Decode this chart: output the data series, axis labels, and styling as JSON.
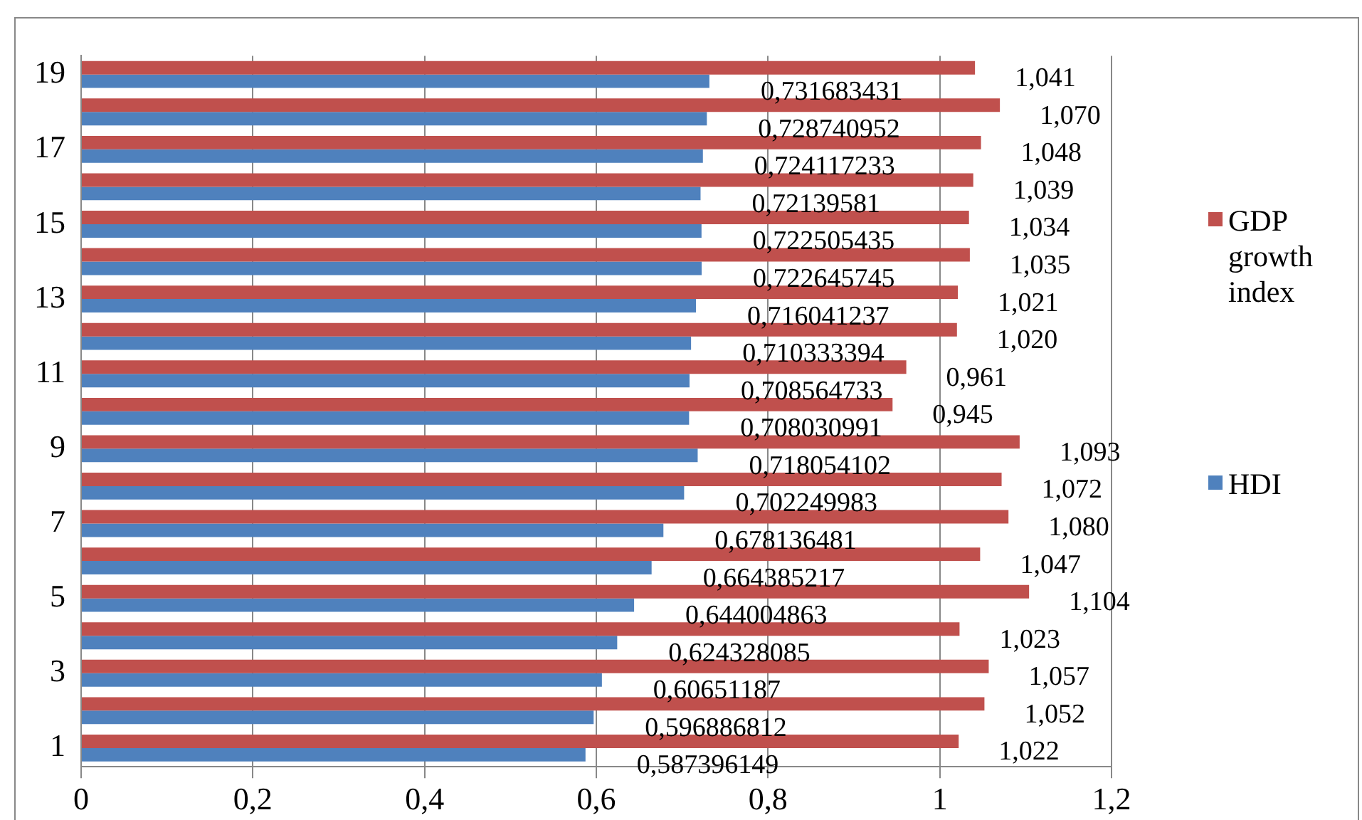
{
  "chart_data": {
    "type": "bar",
    "orientation": "horizontal",
    "categories": [
      "19",
      null,
      "17",
      null,
      "15",
      null,
      "13",
      null,
      "11",
      null,
      "9",
      null,
      "7",
      null,
      "5",
      null,
      "3",
      null,
      "1"
    ],
    "series": [
      {
        "name": "GDP growth index",
        "color": "#c0504d",
        "values": [
          1.041,
          1.07,
          1.048,
          1.039,
          1.034,
          1.035,
          1.021,
          1.02,
          0.961,
          0.945,
          1.093,
          1.072,
          1.08,
          1.047,
          1.104,
          1.023,
          1.057,
          1.052,
          1.022
        ],
        "value_labels": [
          "1,041",
          "1,070",
          "1,048",
          "1,039",
          "1,034",
          "1,035",
          "1,021",
          "1,020",
          "0,961",
          "0,945",
          "1,093",
          "1,072",
          "1,080",
          "1,047",
          "1,104",
          "1,023",
          "1,057",
          "1,052",
          "1,022"
        ]
      },
      {
        "name": "HDI",
        "color": "#4f81bd",
        "values": [
          0.731683431,
          0.728740952,
          0.724117233,
          0.72139581,
          0.722505435,
          0.722645745,
          0.716041237,
          0.710333394,
          0.708564733,
          0.708030991,
          0.718054102,
          0.702249983,
          0.678136481,
          0.664385217,
          0.644004863,
          0.624328085,
          0.60651187,
          0.596886812,
          0.587396149
        ],
        "value_labels": [
          "0,731683431",
          "0,728740952",
          "0,724117233",
          "0,72139581",
          "0,722505435",
          "0,722645745",
          "0,716041237",
          "0,710333394",
          "0,708564733",
          "0,708030991",
          "0,718054102",
          "0,702249983",
          "0,678136481",
          "0,664385217",
          "0,644004863",
          "0,624328085",
          "0,60651187",
          "0,596886812",
          "0,587396149"
        ]
      }
    ],
    "xlim": [
      0,
      1.2
    ],
    "xticks": [
      0,
      {
        "value": 0.2,
        "label": "0,2"
      },
      {
        "value": 0.4,
        "label": "0,4"
      },
      {
        "value": 0.6,
        "label": "0,6"
      },
      {
        "value": 0.8,
        "label": "0,8"
      },
      1,
      {
        "value": 1.2,
        "label": "1,2"
      }
    ],
    "grid": "x",
    "legend": "right"
  }
}
